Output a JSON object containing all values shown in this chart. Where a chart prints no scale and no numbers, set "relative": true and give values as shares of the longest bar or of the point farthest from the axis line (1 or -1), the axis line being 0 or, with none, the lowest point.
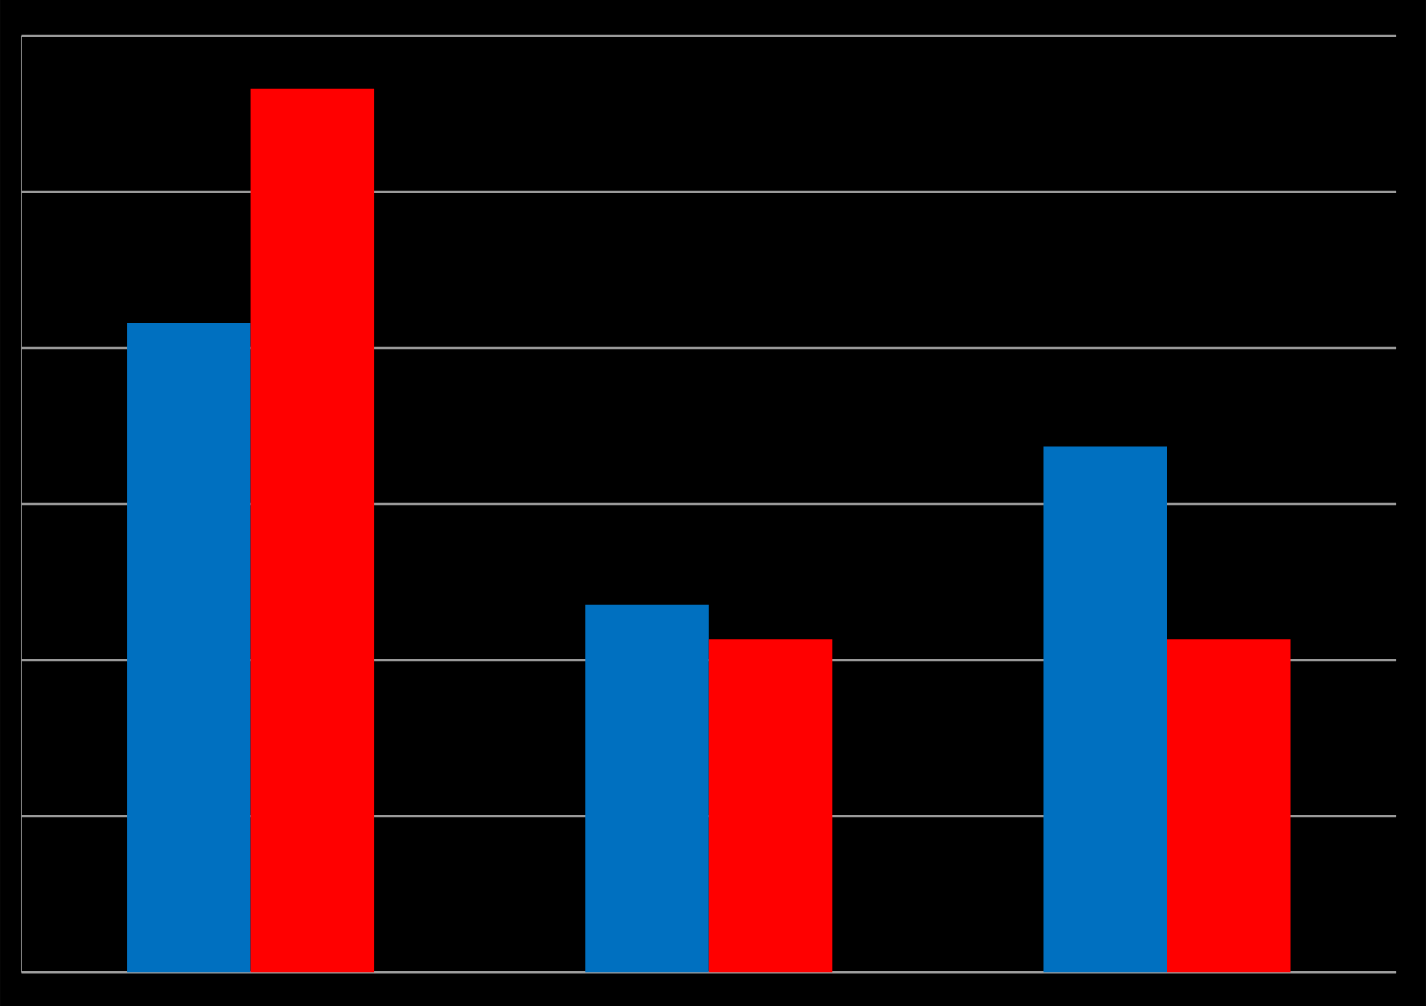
{
  "chart_data": {
    "type": "bar",
    "relative": true,
    "categories": [
      null,
      null,
      null
    ],
    "series": [
      {
        "color": "#0070c0",
        "values": [
          0.735,
          0.416,
          0.595
        ]
      },
      {
        "color": "#ff0000",
        "values": [
          1,
          0.377,
          0.377
        ]
      }
    ],
    "grid": "y"
  }
}
